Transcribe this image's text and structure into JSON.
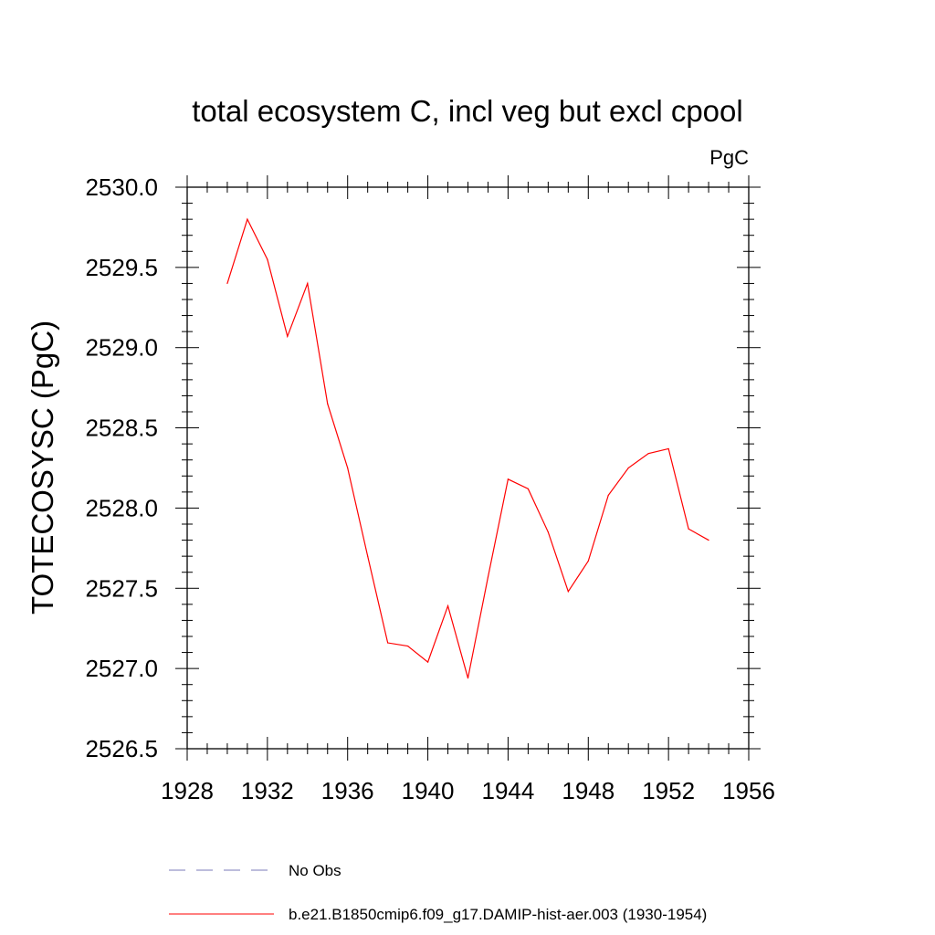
{
  "chart_data": {
    "type": "line",
    "title": "total ecosystem C, incl veg but excl cpool",
    "units_label": "PgC",
    "ylabel": "TOTECOSYSC  (PgC)",
    "xlabel": "",
    "xlim": [
      1928,
      1956
    ],
    "ylim": [
      2526.5,
      2530.0
    ],
    "x_major_ticks": [
      1928,
      1932,
      1936,
      1940,
      1944,
      1948,
      1952,
      1956
    ],
    "x_tick_labels": [
      "1928",
      "1932",
      "1936",
      "1940",
      "1944",
      "1948",
      "1952",
      "1956"
    ],
    "y_major_ticks": [
      2526.5,
      2527.0,
      2527.5,
      2528.0,
      2528.5,
      2529.0,
      2529.5,
      2530.0
    ],
    "y_tick_labels": [
      "2526.5",
      "2527.0",
      "2527.5",
      "2528.0",
      "2528.5",
      "2529.0",
      "2529.5",
      "2530.0"
    ],
    "grid": false,
    "legend_position": "bottom",
    "series": [
      {
        "name": "b.e21.B1850cmip6.f09_g17.DAMIP-hist-aer.003 (1930-1954)",
        "color": "#ff0000",
        "style": "solid",
        "x": [
          1930,
          1931,
          1932,
          1933,
          1934,
          1935,
          1936,
          1937,
          1938,
          1939,
          1940,
          1941,
          1942,
          1943,
          1944,
          1945,
          1946,
          1947,
          1948,
          1949,
          1950,
          1951,
          1952,
          1953,
          1954
        ],
        "y": [
          2529.4,
          2529.8,
          2529.55,
          2529.07,
          2529.4,
          2528.65,
          2528.25,
          2527.7,
          2527.16,
          2527.14,
          2527.04,
          2527.39,
          2526.94,
          2527.57,
          2528.18,
          2528.12,
          2527.85,
          2527.48,
          2527.67,
          2528.08,
          2528.25,
          2528.34,
          2528.37,
          2527.87,
          2527.8
        ]
      }
    ],
    "legend": [
      {
        "label": "No Obs",
        "color": "#7b7bb8",
        "style": "dashed"
      },
      {
        "label": "b.e21.B1850cmip6.f09_g17.DAMIP-hist-aer.003 (1930-1954)",
        "color": "#ff0000",
        "style": "solid"
      }
    ]
  }
}
